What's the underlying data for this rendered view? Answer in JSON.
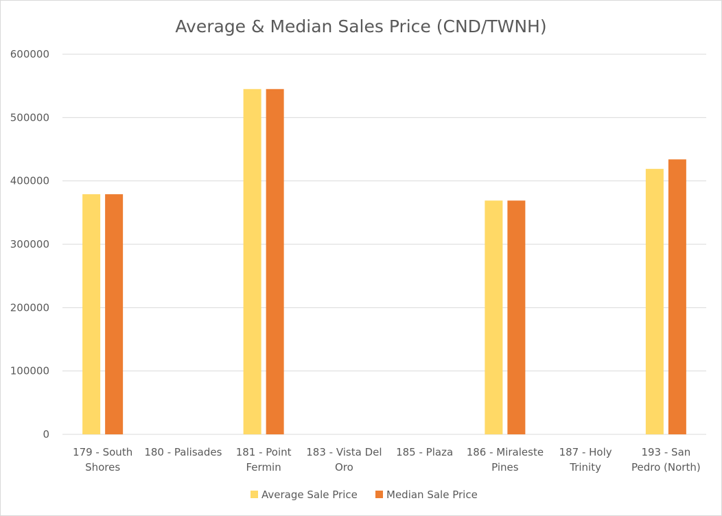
{
  "chart_data": {
    "type": "bar",
    "title": "Average & Median Sales Price (CND/TWNH)",
    "xlabel": "",
    "ylabel": "",
    "ylim": [
      0,
      600000
    ],
    "yticks": [
      "0",
      "100000",
      "200000",
      "300000",
      "400000",
      "500000",
      "600000"
    ],
    "grid": true,
    "legend_position": "bottom",
    "categories": [
      [
        "179 - South",
        "Shores"
      ],
      [
        "180 - Palisades"
      ],
      [
        "181 - Point",
        "Fermin"
      ],
      [
        "183 - Vista Del",
        "Oro"
      ],
      [
        "185 - Plaza"
      ],
      [
        "186 - Miraleste",
        "Pines"
      ],
      [
        "187 - Holy",
        "Trinity"
      ],
      [
        "193 - San",
        "Pedro (North)"
      ]
    ],
    "series": [
      {
        "name": "Average Sale Price",
        "color": "#FFD966",
        "values": [
          379000,
          0,
          545000,
          0,
          0,
          369000,
          0,
          419000
        ]
      },
      {
        "name": "Median Sale Price",
        "color": "#ED7D31",
        "values": [
          379000,
          0,
          545000,
          0,
          0,
          369000,
          0,
          434000
        ]
      }
    ]
  }
}
